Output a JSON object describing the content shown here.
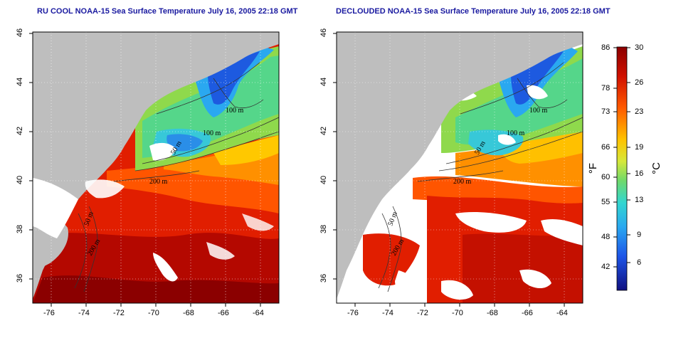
{
  "maps": [
    {
      "title": "RU COOL NOAA-15 Sea Surface Temperature July 16, 2005 22:18 GMT",
      "x_ticks": [
        "-76",
        "-74",
        "-72",
        "-70",
        "-68",
        "-66",
        "-64"
      ],
      "y_ticks": [
        "46",
        "44",
        "42",
        "40",
        "38",
        "36"
      ],
      "contour_labels": [
        "100 m",
        "100 m",
        "50 m",
        "200 m",
        "50 m",
        "200 m"
      ]
    },
    {
      "title": "DECLOUDED NOAA-15 Sea Surface Temperature July 16, 2005 22:18 GMT",
      "x_ticks": [
        "-76",
        "-74",
        "-72",
        "-70",
        "-68",
        "-66",
        "-64"
      ],
      "y_ticks": [
        "46",
        "44",
        "42",
        "40",
        "38",
        "36"
      ],
      "contour_labels": [
        "100 m",
        "100 m",
        "50 m",
        "200 m",
        "50 m",
        "200 m"
      ]
    }
  ],
  "colorbar": {
    "fahrenheit_labels": [
      "86",
      "78",
      "73",
      "66",
      "60",
      "55",
      "48",
      "42"
    ],
    "celsius_labels": [
      "30",
      "26",
      "23",
      "19",
      "16",
      "13",
      "9",
      "6"
    ],
    "fahrenheit_unit": "°F",
    "celsius_unit": "°C"
  },
  "colors": {
    "land": "#bebebe",
    "cloud": "#ffffff",
    "title": "#1a1aa0",
    "warm_dark": "#8b0000",
    "warm": "#e21f00",
    "orange": "#ff8c00",
    "yellow": "#ffd700",
    "green": "#7cd74a",
    "cyan": "#37c8d8",
    "blue": "#1f5fe0"
  },
  "chart_data": {
    "type": "heatmap",
    "longitude_range": [
      -77,
      -63
    ],
    "latitude_range": [
      35,
      46
    ],
    "temperature_range_c": [
      2,
      30
    ],
    "grid": "dotted",
    "colorbar": "right"
  }
}
